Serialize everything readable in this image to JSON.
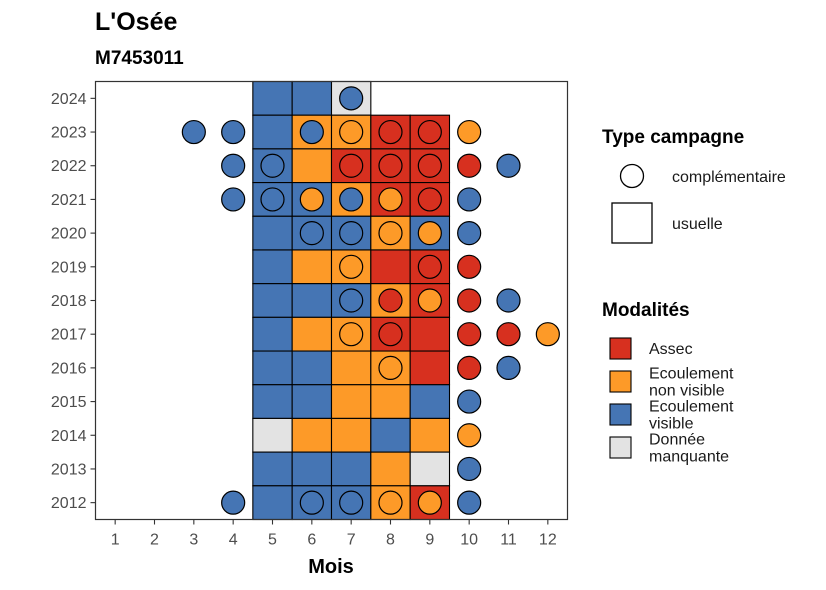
{
  "chart_data": {
    "type": "heatmap",
    "title": "L'Osée",
    "subtitle": "M7453011",
    "xlabel": "Mois",
    "ylabel": "",
    "x_ticks": [
      1,
      2,
      3,
      4,
      5,
      6,
      7,
      8,
      9,
      10,
      11,
      12
    ],
    "y_ticks": [
      2012,
      2013,
      2014,
      2015,
      2016,
      2017,
      2018,
      2019,
      2020,
      2021,
      2022,
      2023,
      2024
    ],
    "xlim": [
      0.5,
      12.5
    ],
    "ylim": [
      2011.5,
      2024.5
    ],
    "grid": false,
    "legend_position": "right",
    "colors": {
      "Assec": "#d7301f",
      "Ecoulement non visible": "#fd9a28",
      "Ecoulement visible": "#4575b4",
      "Donnée manquante": "#e3e3e3"
    },
    "legend_shape": {
      "title": "Type campagne",
      "items": [
        {
          "label": "complémentaire",
          "shape": "circle"
        },
        {
          "label": "usuelle",
          "shape": "square"
        }
      ]
    },
    "legend_fill": {
      "title": "Modalités",
      "items": [
        {
          "lines": [
            "Assec"
          ],
          "key": "Assec"
        },
        {
          "lines": [
            "Ecoulement",
            "non visible"
          ],
          "key": "Ecoulement non visible"
        },
        {
          "lines": [
            "Ecoulement",
            "visible"
          ],
          "key": "Ecoulement visible"
        },
        {
          "lines": [
            "Donnée",
            "manquante"
          ],
          "key": "Donnée manquante"
        }
      ]
    },
    "usuelle": [
      {
        "year": 2024,
        "months": [
          "Ecoulement visible",
          "Ecoulement visible",
          "Donnée manquante",
          null,
          null
        ]
      },
      {
        "year": 2023,
        "months": [
          "Ecoulement visible",
          "Ecoulement non visible",
          "Ecoulement non visible",
          "Assec",
          "Assec"
        ]
      },
      {
        "year": 2022,
        "months": [
          "Ecoulement visible",
          "Ecoulement non visible",
          "Assec",
          "Assec",
          "Assec"
        ]
      },
      {
        "year": 2021,
        "months": [
          "Ecoulement visible",
          "Ecoulement visible",
          "Ecoulement non visible",
          "Assec",
          "Assec"
        ]
      },
      {
        "year": 2020,
        "months": [
          "Ecoulement visible",
          "Ecoulement visible",
          "Ecoulement visible",
          "Ecoulement non visible",
          "Ecoulement visible"
        ]
      },
      {
        "year": 2019,
        "months": [
          "Ecoulement visible",
          "Ecoulement non visible",
          "Ecoulement non visible",
          "Assec",
          "Assec"
        ]
      },
      {
        "year": 2018,
        "months": [
          "Ecoulement visible",
          "Ecoulement visible",
          "Ecoulement visible",
          "Ecoulement non visible",
          "Assec"
        ]
      },
      {
        "year": 2017,
        "months": [
          "Ecoulement visible",
          "Ecoulement non visible",
          "Ecoulement non visible",
          "Assec",
          "Assec"
        ]
      },
      {
        "year": 2016,
        "months": [
          "Ecoulement visible",
          "Ecoulement visible",
          "Ecoulement non visible",
          "Ecoulement non visible",
          "Assec"
        ]
      },
      {
        "year": 2015,
        "months": [
          "Ecoulement visible",
          "Ecoulement visible",
          "Ecoulement non visible",
          "Ecoulement non visible",
          "Ecoulement visible"
        ]
      },
      {
        "year": 2014,
        "months": [
          "Donnée manquante",
          "Ecoulement non visible",
          "Ecoulement non visible",
          "Ecoulement visible",
          "Ecoulement non visible"
        ]
      },
      {
        "year": 2013,
        "months": [
          "Ecoulement visible",
          "Ecoulement visible",
          "Ecoulement visible",
          "Ecoulement non visible",
          "Donnée manquante"
        ]
      },
      {
        "year": 2012,
        "months": [
          "Ecoulement visible",
          "Ecoulement visible",
          "Ecoulement visible",
          "Ecoulement non visible",
          "Assec"
        ]
      }
    ],
    "usuelle_months": [
      5,
      6,
      7,
      8,
      9
    ],
    "complementaire": [
      {
        "year": 2024,
        "month": 7,
        "value": "Ecoulement visible"
      },
      {
        "year": 2023,
        "month": 3,
        "value": "Ecoulement visible"
      },
      {
        "year": 2023,
        "month": 4,
        "value": "Ecoulement visible"
      },
      {
        "year": 2023,
        "month": 6,
        "value": "Ecoulement visible"
      },
      {
        "year": 2023,
        "month": 7,
        "value": "Ecoulement non visible"
      },
      {
        "year": 2023,
        "month": 8,
        "value": "Assec"
      },
      {
        "year": 2023,
        "month": 9,
        "value": "Assec"
      },
      {
        "year": 2023,
        "month": 10,
        "value": "Ecoulement non visible"
      },
      {
        "year": 2022,
        "month": 4,
        "value": "Ecoulement visible"
      },
      {
        "year": 2022,
        "month": 5,
        "value": "Ecoulement visible"
      },
      {
        "year": 2022,
        "month": 7,
        "value": "Assec"
      },
      {
        "year": 2022,
        "month": 8,
        "value": "Assec"
      },
      {
        "year": 2022,
        "month": 9,
        "value": "Assec"
      },
      {
        "year": 2022,
        "month": 10,
        "value": "Assec"
      },
      {
        "year": 2022,
        "month": 11,
        "value": "Ecoulement visible"
      },
      {
        "year": 2021,
        "month": 4,
        "value": "Ecoulement visible"
      },
      {
        "year": 2021,
        "month": 5,
        "value": "Ecoulement visible"
      },
      {
        "year": 2021,
        "month": 6,
        "value": "Ecoulement non visible"
      },
      {
        "year": 2021,
        "month": 7,
        "value": "Ecoulement visible"
      },
      {
        "year": 2021,
        "month": 8,
        "value": "Ecoulement non visible"
      },
      {
        "year": 2021,
        "month": 9,
        "value": "Assec"
      },
      {
        "year": 2021,
        "month": 10,
        "value": "Ecoulement visible"
      },
      {
        "year": 2020,
        "month": 6,
        "value": "Ecoulement visible"
      },
      {
        "year": 2020,
        "month": 7,
        "value": "Ecoulement visible"
      },
      {
        "year": 2020,
        "month": 8,
        "value": "Ecoulement non visible"
      },
      {
        "year": 2020,
        "month": 9,
        "value": "Ecoulement non visible"
      },
      {
        "year": 2020,
        "month": 10,
        "value": "Ecoulement visible"
      },
      {
        "year": 2019,
        "month": 7,
        "value": "Ecoulement non visible"
      },
      {
        "year": 2019,
        "month": 9,
        "value": "Assec"
      },
      {
        "year": 2019,
        "month": 10,
        "value": "Assec"
      },
      {
        "year": 2018,
        "month": 7,
        "value": "Ecoulement visible"
      },
      {
        "year": 2018,
        "month": 8,
        "value": "Assec"
      },
      {
        "year": 2018,
        "month": 9,
        "value": "Ecoulement non visible"
      },
      {
        "year": 2018,
        "month": 10,
        "value": "Assec"
      },
      {
        "year": 2018,
        "month": 11,
        "value": "Ecoulement visible"
      },
      {
        "year": 2017,
        "month": 7,
        "value": "Ecoulement non visible"
      },
      {
        "year": 2017,
        "month": 8,
        "value": "Assec"
      },
      {
        "year": 2017,
        "month": 10,
        "value": "Assec"
      },
      {
        "year": 2017,
        "month": 11,
        "value": "Assec"
      },
      {
        "year": 2017,
        "month": 12,
        "value": "Ecoulement non visible"
      },
      {
        "year": 2016,
        "month": 8,
        "value": "Ecoulement non visible"
      },
      {
        "year": 2016,
        "month": 10,
        "value": "Assec"
      },
      {
        "year": 2016,
        "month": 11,
        "value": "Ecoulement visible"
      },
      {
        "year": 2015,
        "month": 10,
        "value": "Ecoulement visible"
      },
      {
        "year": 2014,
        "month": 10,
        "value": "Ecoulement non visible"
      },
      {
        "year": 2013,
        "month": 10,
        "value": "Ecoulement visible"
      },
      {
        "year": 2012,
        "month": 4,
        "value": "Ecoulement visible"
      },
      {
        "year": 2012,
        "month": 6,
        "value": "Ecoulement visible"
      },
      {
        "year": 2012,
        "month": 7,
        "value": "Ecoulement visible"
      },
      {
        "year": 2012,
        "month": 8,
        "value": "Ecoulement non visible"
      },
      {
        "year": 2012,
        "month": 9,
        "value": "Ecoulement non visible"
      },
      {
        "year": 2012,
        "month": 10,
        "value": "Ecoulement visible"
      }
    ]
  }
}
